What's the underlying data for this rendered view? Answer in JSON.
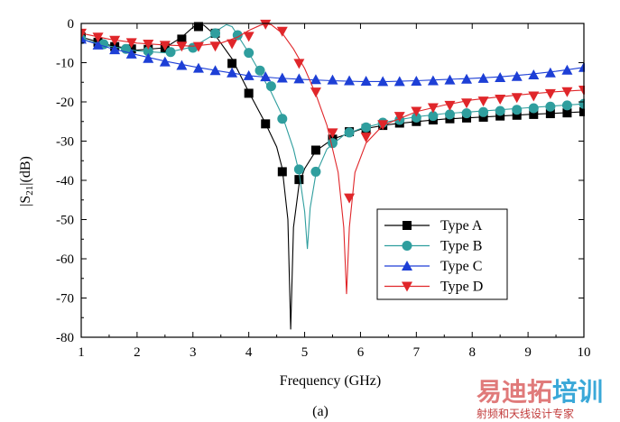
{
  "chart_data": {
    "type": "line",
    "title": "",
    "xlabel": "Frequency (GHz)",
    "ylabel": "|S21|(dB)",
    "ylabel_parts": {
      "pre": "|S",
      "sub": "21",
      "post": "|(dB)"
    },
    "xlim": [
      1,
      10
    ],
    "ylim": [
      -80,
      0
    ],
    "xticks": [
      1,
      2,
      3,
      4,
      5,
      6,
      7,
      8,
      9,
      10
    ],
    "yticks": [
      0,
      -10,
      -20,
      -30,
      -40,
      -50,
      -60,
      -70,
      -80
    ],
    "legend_position": "lower-right",
    "caption": "(a)",
    "series": [
      {
        "name": "Type A",
        "color": "#000000",
        "marker": "square",
        "curve_x": [
          1.0,
          1.5,
          2.0,
          2.5,
          2.8,
          3.0,
          3.1,
          3.2,
          3.4,
          3.7,
          4.0,
          4.3,
          4.5,
          4.6,
          4.7,
          4.75,
          4.8,
          4.9,
          5.0,
          5.2,
          5.5,
          6.0,
          6.5,
          7.0,
          7.5,
          8.0,
          8.5,
          9.0,
          9.5,
          10.0
        ],
        "curve_y": [
          -3.5,
          -5.5,
          -6.8,
          -6.2,
          -3.5,
          -1.0,
          0.0,
          -0.5,
          -3.0,
          -9.0,
          -17.5,
          -25.5,
          -31.5,
          -37.0,
          -50.0,
          -78.0,
          -52.0,
          -41.0,
          -37.0,
          -32.5,
          -29.5,
          -27.0,
          -25.8,
          -25.0,
          -24.4,
          -24.0,
          -23.6,
          -23.2,
          -22.9,
          -22.5
        ],
        "marker_x": [
          1.0,
          1.3,
          1.6,
          1.9,
          2.2,
          2.5,
          2.8,
          3.1,
          3.4,
          3.7,
          4.0,
          4.3,
          4.6,
          4.9,
          5.2,
          5.5,
          5.8,
          6.1,
          6.4,
          6.7,
          7.0,
          7.3,
          7.6,
          7.9,
          8.2,
          8.5,
          8.8,
          9.1,
          9.4,
          9.7,
          10.0
        ],
        "marker_y": [
          -3.5,
          -4.8,
          -5.9,
          -6.5,
          -6.6,
          -6.2,
          -4.0,
          -0.8,
          -2.5,
          -10.2,
          -17.8,
          -25.6,
          -37.8,
          -39.8,
          -32.3,
          -29.5,
          -27.6,
          -26.8,
          -26.0,
          -25.4,
          -25.0,
          -24.6,
          -24.3,
          -24.1,
          -23.9,
          -23.6,
          -23.4,
          -23.2,
          -23.0,
          -22.8,
          -22.5
        ]
      },
      {
        "name": "Type B",
        "color": "#2f9e9e",
        "marker": "circle",
        "curve_x": [
          1.0,
          1.5,
          2.0,
          2.5,
          3.0,
          3.3,
          3.5,
          3.6,
          3.7,
          3.8,
          4.0,
          4.2,
          4.4,
          4.6,
          4.8,
          4.9,
          5.0,
          5.05,
          5.1,
          5.2,
          5.4,
          5.7,
          6.0,
          6.5,
          7.0,
          7.5,
          8.0,
          8.5,
          9.0,
          9.5,
          10.0
        ],
        "curve_y": [
          -4.0,
          -5.8,
          -7.0,
          -7.5,
          -6.0,
          -3.5,
          -1.2,
          -0.3,
          -0.8,
          -3.0,
          -7.5,
          -12.5,
          -17.5,
          -23.5,
          -32.0,
          -38.0,
          -48.0,
          -57.5,
          -47.0,
          -38.5,
          -32.0,
          -28.5,
          -26.8,
          -25.0,
          -23.8,
          -23.0,
          -22.5,
          -22.0,
          -21.5,
          -21.0,
          -20.5
        ],
        "marker_x": [
          1.0,
          1.4,
          1.8,
          2.2,
          2.6,
          3.0,
          3.4,
          3.8,
          4.0,
          4.2,
          4.4,
          4.6,
          4.9,
          5.2,
          5.5,
          5.8,
          6.1,
          6.4,
          6.7,
          7.0,
          7.3,
          7.6,
          7.9,
          8.2,
          8.5,
          8.8,
          9.1,
          9.4,
          9.7,
          10.0
        ],
        "marker_y": [
          -4.0,
          -5.3,
          -6.5,
          -7.1,
          -7.3,
          -6.2,
          -2.5,
          -3.0,
          -7.5,
          -12.0,
          -16.0,
          -24.3,
          -37.2,
          -37.8,
          -30.5,
          -27.8,
          -26.5,
          -25.3,
          -24.6,
          -24.0,
          -23.6,
          -23.2,
          -22.9,
          -22.6,
          -22.3,
          -22.0,
          -21.6,
          -21.2,
          -20.9,
          -20.5
        ]
      },
      {
        "name": "Type C",
        "color": "#1d3fd6",
        "marker": "triangle-up",
        "curve_x": [
          1.0,
          1.5,
          2.0,
          2.5,
          3.0,
          3.5,
          4.0,
          4.5,
          5.0,
          5.5,
          6.0,
          6.5,
          7.0,
          7.5,
          8.0,
          8.5,
          9.0,
          9.5,
          10.0
        ],
        "curve_y": [
          -4.0,
          -6.2,
          -8.0,
          -9.6,
          -11.0,
          -12.2,
          -13.3,
          -13.9,
          -14.3,
          -14.6,
          -14.8,
          -14.8,
          -14.6,
          -14.3,
          -14.0,
          -13.6,
          -13.0,
          -12.2,
          -11.2
        ],
        "marker_x": [
          1.0,
          1.3,
          1.6,
          1.9,
          2.2,
          2.5,
          2.8,
          3.1,
          3.4,
          3.7,
          4.0,
          4.3,
          4.6,
          4.9,
          5.2,
          5.5,
          5.8,
          6.1,
          6.4,
          6.7,
          7.0,
          7.3,
          7.6,
          7.9,
          8.2,
          8.5,
          8.8,
          9.1,
          9.4,
          9.7,
          10.0
        ],
        "marker_y": [
          -4.0,
          -5.5,
          -6.7,
          -7.8,
          -8.9,
          -9.8,
          -10.7,
          -11.4,
          -12.0,
          -12.6,
          -13.3,
          -13.6,
          -13.9,
          -14.1,
          -14.3,
          -14.4,
          -14.6,
          -14.7,
          -14.8,
          -14.8,
          -14.7,
          -14.6,
          -14.4,
          -14.2,
          -14.0,
          -13.8,
          -13.5,
          -13.1,
          -12.6,
          -11.9,
          -11.2
        ]
      },
      {
        "name": "Type D",
        "color": "#e0262a",
        "marker": "triangle-down",
        "curve_x": [
          1.0,
          1.5,
          2.0,
          2.5,
          3.0,
          3.5,
          3.8,
          4.0,
          4.2,
          4.3,
          4.4,
          4.6,
          4.8,
          5.0,
          5.2,
          5.4,
          5.6,
          5.7,
          5.75,
          5.8,
          5.9,
          6.1,
          6.4,
          7.0,
          7.5,
          8.0,
          8.5,
          9.0,
          9.5,
          10.0
        ],
        "curve_y": [
          -2.5,
          -4.0,
          -5.0,
          -5.5,
          -5.8,
          -5.0,
          -3.5,
          -1.8,
          -0.5,
          -0.1,
          -0.3,
          -2.5,
          -6.5,
          -11.5,
          -18.0,
          -26.0,
          -38.0,
          -52.0,
          -69.0,
          -52.0,
          -38.0,
          -30.5,
          -26.0,
          -22.5,
          -20.8,
          -19.5,
          -18.7,
          -18.0,
          -17.4,
          -17.0
        ],
        "marker_x": [
          1.0,
          1.3,
          1.6,
          1.9,
          2.2,
          2.5,
          2.8,
          3.1,
          3.4,
          3.7,
          4.0,
          4.3,
          4.6,
          4.9,
          5.2,
          5.5,
          5.8,
          6.1,
          6.4,
          6.7,
          7.0,
          7.3,
          7.6,
          7.9,
          8.2,
          8.5,
          8.8,
          9.1,
          9.4,
          9.7,
          10.0
        ],
        "marker_y": [
          -2.5,
          -3.5,
          -4.3,
          -4.9,
          -5.3,
          -5.6,
          -5.8,
          -5.9,
          -5.8,
          -5.2,
          -3.3,
          -0.2,
          -2.0,
          -10.2,
          -17.5,
          -27.9,
          -44.5,
          -29.0,
          -25.8,
          -23.7,
          -22.4,
          -21.5,
          -20.9,
          -20.3,
          -19.8,
          -19.3,
          -18.9,
          -18.5,
          -17.9,
          -17.4,
          -17.0
        ]
      }
    ]
  },
  "watermark": {
    "main": "易迪拓培训",
    "sub": "射频和天线设计专家",
    "colors": [
      "#e07a7a",
      "#e07a7a",
      "#e07a7a",
      "#3aa8d8",
      "#3aa8d8"
    ]
  }
}
